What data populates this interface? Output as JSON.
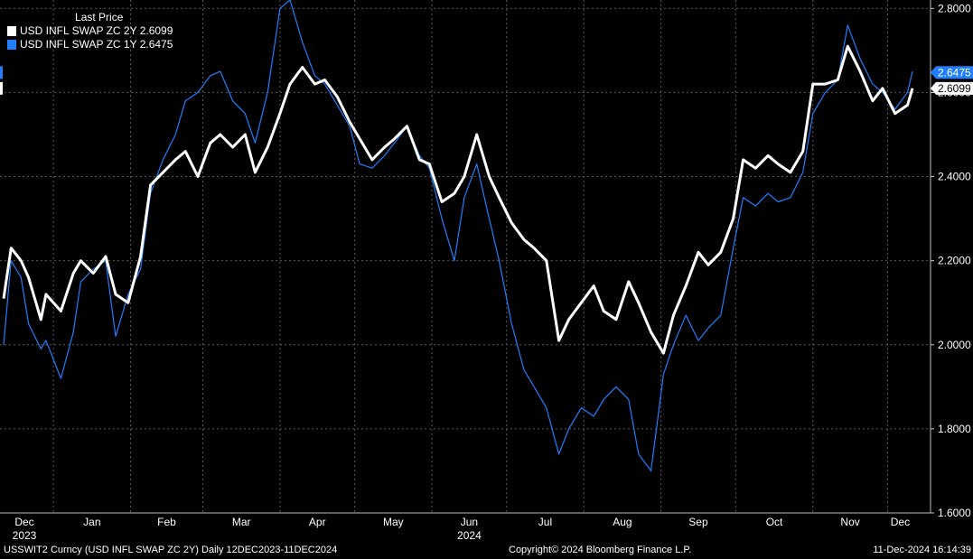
{
  "legend": {
    "header": "Last Price",
    "series": [
      {
        "label": "USD INFL SWAP ZC 2Y 2.6099",
        "color": "#ffffff"
      },
      {
        "label": "USD INFL SWAP ZC 1Y 2.6475",
        "color": "#1f7fff"
      }
    ]
  },
  "footer": {
    "left": "USSWIT2 Curncy (USD INFL SWAP ZC 2Y)  Daily 12DEC2023-11DEC2024",
    "center": "Copyright© 2024 Bloomberg Finance L.P.",
    "right": "11-Dec-2024 16:14:39"
  },
  "chart_data": {
    "type": "line",
    "ylim": [
      1.6,
      2.82
    ],
    "yticks": [
      "1.6000",
      "1.8000",
      "2.0000",
      "2.2000",
      "2.4000",
      "2.6000",
      "2.8000"
    ],
    "xticks": [
      {
        "label": "Dec",
        "sub": "2023"
      },
      {
        "label": "Jan",
        "sub": ""
      },
      {
        "label": "Feb",
        "sub": ""
      },
      {
        "label": "Mar",
        "sub": ""
      },
      {
        "label": "Apr",
        "sub": ""
      },
      {
        "label": "May",
        "sub": ""
      },
      {
        "label": "Jun",
        "sub": "2024"
      },
      {
        "label": "Jul",
        "sub": ""
      },
      {
        "label": "Aug",
        "sub": ""
      },
      {
        "label": "Sep",
        "sub": ""
      },
      {
        "label": "Oct",
        "sub": ""
      },
      {
        "label": "Nov",
        "sub": ""
      },
      {
        "label": "Dec",
        "sub": ""
      }
    ],
    "last_value_tags": [
      {
        "value": 2.6475,
        "label": "2.6475",
        "color": "#1f7fff"
      },
      {
        "value": 2.6099,
        "label": "2.6099",
        "color": "#ffffff"
      }
    ],
    "series": [
      {
        "name": "USD INFL SWAP ZC 2Y",
        "color": "#ffffff",
        "x": [
          "2023-12-12",
          "2023-12-15",
          "2023-12-19",
          "2023-12-22",
          "2023-12-27",
          "2023-12-29",
          "2024-01-04",
          "2024-01-09",
          "2024-01-12",
          "2024-01-17",
          "2024-01-22",
          "2024-01-26",
          "2024-01-31",
          "2024-02-05",
          "2024-02-09",
          "2024-02-14",
          "2024-02-19",
          "2024-02-23",
          "2024-02-28",
          "2024-03-04",
          "2024-03-08",
          "2024-03-13",
          "2024-03-18",
          "2024-03-22",
          "2024-03-27",
          "2024-04-01",
          "2024-04-05",
          "2024-04-10",
          "2024-04-15",
          "2024-04-19",
          "2024-04-24",
          "2024-04-29",
          "2024-05-03",
          "2024-05-08",
          "2024-05-13",
          "2024-05-17",
          "2024-05-22",
          "2024-05-27",
          "2024-05-31",
          "2024-06-05",
          "2024-06-10",
          "2024-06-14",
          "2024-06-19",
          "2024-06-24",
          "2024-06-28",
          "2024-07-03",
          "2024-07-08",
          "2024-07-12",
          "2024-07-17",
          "2024-07-22",
          "2024-07-26",
          "2024-07-31",
          "2024-08-05",
          "2024-08-09",
          "2024-08-14",
          "2024-08-19",
          "2024-08-23",
          "2024-08-28",
          "2024-09-02",
          "2024-09-06",
          "2024-09-11",
          "2024-09-16",
          "2024-09-20",
          "2024-09-25",
          "2024-09-30",
          "2024-10-04",
          "2024-10-09",
          "2024-10-14",
          "2024-10-18",
          "2024-10-23",
          "2024-10-28",
          "2024-11-01",
          "2024-11-06",
          "2024-11-11",
          "2024-11-15",
          "2024-11-20",
          "2024-11-25",
          "2024-11-29",
          "2024-12-04",
          "2024-12-09",
          "2024-12-11"
        ],
        "values": [
          2.11,
          2.23,
          2.2,
          2.16,
          2.06,
          2.12,
          2.08,
          2.17,
          2.2,
          2.17,
          2.21,
          2.12,
          2.1,
          2.21,
          2.38,
          2.41,
          2.44,
          2.46,
          2.4,
          2.48,
          2.5,
          2.47,
          2.5,
          2.41,
          2.47,
          2.55,
          2.62,
          2.66,
          2.62,
          2.63,
          2.59,
          2.53,
          2.49,
          2.44,
          2.47,
          2.49,
          2.52,
          2.44,
          2.43,
          2.34,
          2.36,
          2.4,
          2.5,
          2.4,
          2.35,
          2.29,
          2.25,
          2.23,
          2.2,
          2.01,
          2.06,
          2.1,
          2.14,
          2.08,
          2.06,
          2.15,
          2.1,
          2.03,
          1.98,
          2.07,
          2.14,
          2.22,
          2.19,
          2.22,
          2.3,
          2.44,
          2.42,
          2.45,
          2.43,
          2.41,
          2.46,
          2.62,
          2.62,
          2.63,
          2.71,
          2.65,
          2.58,
          2.61,
          2.55,
          2.57,
          2.61
        ]
      },
      {
        "name": "USD INFL SWAP ZC 1Y",
        "color": "#1f7fff",
        "x": [
          "2023-12-12",
          "2023-12-15",
          "2023-12-19",
          "2023-12-22",
          "2023-12-27",
          "2023-12-29",
          "2024-01-04",
          "2024-01-09",
          "2024-01-12",
          "2024-01-17",
          "2024-01-22",
          "2024-01-26",
          "2024-01-31",
          "2024-02-05",
          "2024-02-09",
          "2024-02-14",
          "2024-02-19",
          "2024-02-23",
          "2024-02-28",
          "2024-03-04",
          "2024-03-08",
          "2024-03-13",
          "2024-03-18",
          "2024-03-22",
          "2024-03-27",
          "2024-04-01",
          "2024-04-05",
          "2024-04-10",
          "2024-04-15",
          "2024-04-19",
          "2024-04-24",
          "2024-04-29",
          "2024-05-03",
          "2024-05-08",
          "2024-05-13",
          "2024-05-17",
          "2024-05-22",
          "2024-05-27",
          "2024-05-31",
          "2024-06-05",
          "2024-06-10",
          "2024-06-14",
          "2024-06-19",
          "2024-06-24",
          "2024-06-28",
          "2024-07-03",
          "2024-07-08",
          "2024-07-12",
          "2024-07-17",
          "2024-07-22",
          "2024-07-26",
          "2024-07-31",
          "2024-08-05",
          "2024-08-09",
          "2024-08-14",
          "2024-08-19",
          "2024-08-23",
          "2024-08-28",
          "2024-09-02",
          "2024-09-06",
          "2024-09-11",
          "2024-09-16",
          "2024-09-20",
          "2024-09-25",
          "2024-09-30",
          "2024-10-04",
          "2024-10-09",
          "2024-10-14",
          "2024-10-18",
          "2024-10-23",
          "2024-10-28",
          "2024-11-01",
          "2024-11-06",
          "2024-11-11",
          "2024-11-15",
          "2024-11-20",
          "2024-11-25",
          "2024-11-29",
          "2024-12-04",
          "2024-12-09",
          "2024-12-11"
        ],
        "values": [
          2.0,
          2.2,
          2.16,
          2.05,
          1.99,
          2.01,
          1.92,
          2.03,
          2.15,
          2.18,
          2.2,
          2.02,
          2.12,
          2.18,
          2.36,
          2.44,
          2.5,
          2.58,
          2.6,
          2.64,
          2.65,
          2.58,
          2.55,
          2.48,
          2.6,
          2.8,
          2.82,
          2.72,
          2.64,
          2.62,
          2.57,
          2.52,
          2.43,
          2.42,
          2.45,
          2.48,
          2.52,
          2.45,
          2.42,
          2.3,
          2.2,
          2.35,
          2.43,
          2.3,
          2.2,
          2.05,
          1.94,
          1.9,
          1.85,
          1.74,
          1.8,
          1.85,
          1.83,
          1.87,
          1.9,
          1.87,
          1.74,
          1.7,
          1.93,
          2.0,
          2.07,
          2.01,
          2.04,
          2.07,
          2.23,
          2.35,
          2.33,
          2.36,
          2.34,
          2.35,
          2.41,
          2.55,
          2.6,
          2.63,
          2.76,
          2.68,
          2.62,
          2.6,
          2.56,
          2.6,
          2.65
        ]
      }
    ]
  }
}
